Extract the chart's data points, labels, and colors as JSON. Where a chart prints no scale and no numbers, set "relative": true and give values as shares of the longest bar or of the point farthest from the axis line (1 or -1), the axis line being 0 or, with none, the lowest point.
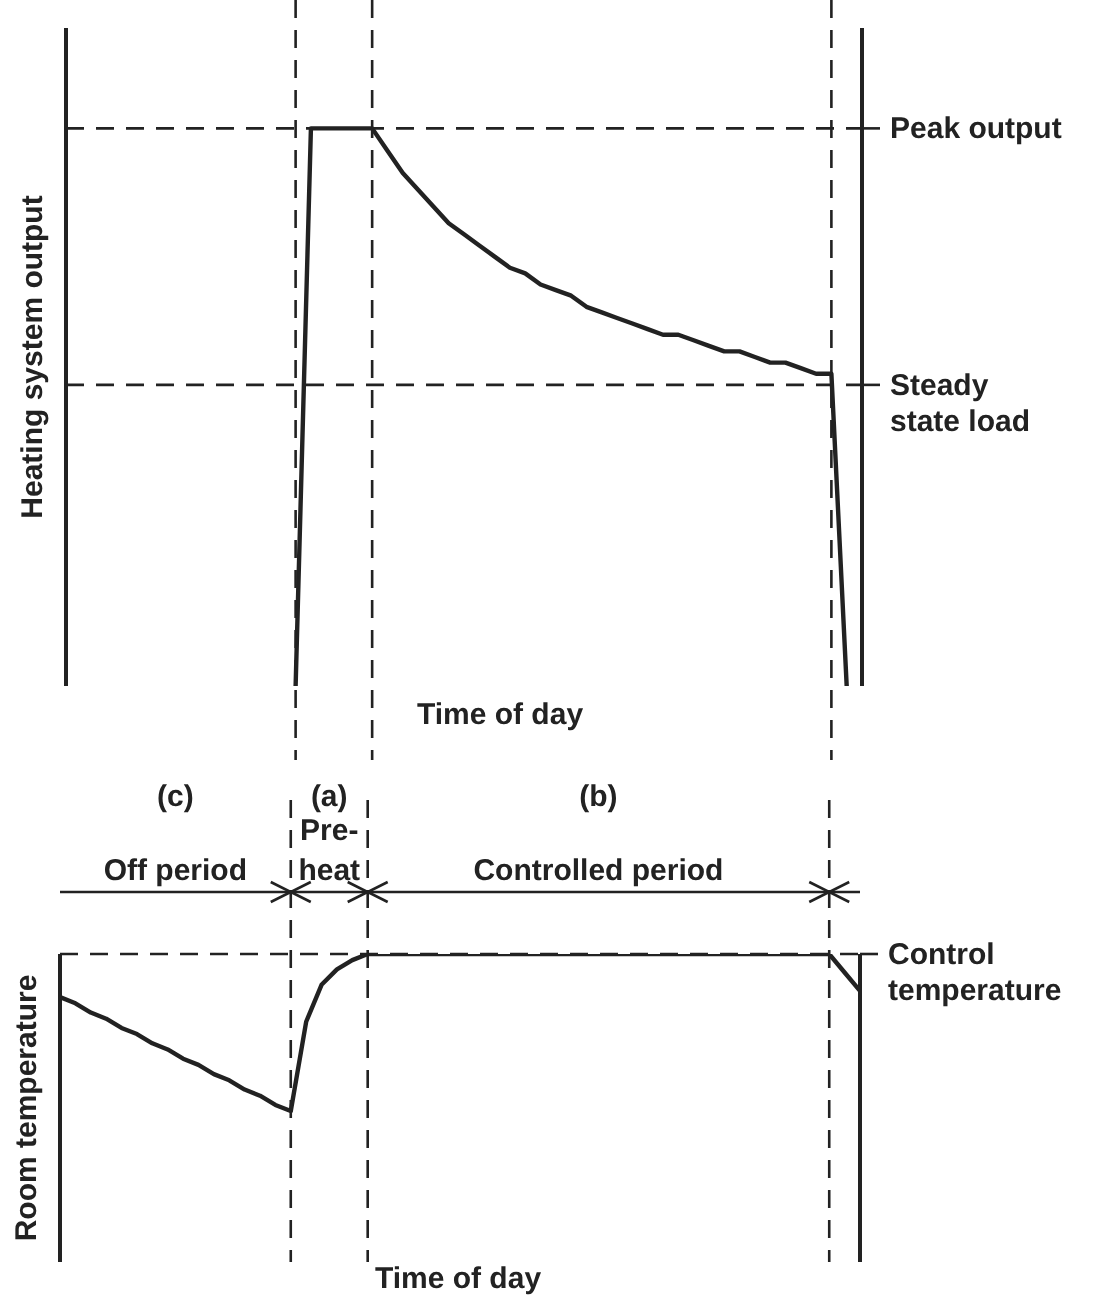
{
  "chart_data": [
    {
      "type": "line",
      "relative": true,
      "grid": "x",
      "ylabel": "Heating system output",
      "xlabel": "Time of day",
      "categories": [
        null,
        null,
        null,
        null,
        null,
        null,
        null,
        null,
        null,
        null,
        null,
        null,
        null,
        null,
        null,
        null,
        null,
        null,
        null,
        null,
        null,
        null,
        null,
        null,
        null,
        null,
        null,
        null,
        null,
        null,
        null,
        null,
        null,
        null,
        null,
        null,
        null,
        null,
        null,
        null,
        null,
        null,
        null,
        null,
        null,
        null,
        null,
        null,
        null,
        null,
        null,
        null,
        null
      ],
      "series": [
        {
          "color": "#222222",
          "values": [
            null,
            null,
            null,
            null,
            null,
            null,
            null,
            null,
            null,
            null,
            null,
            null,
            null,
            null,
            null,
            0,
            1,
            1,
            1,
            1,
            1,
            0.96,
            0.92,
            0.89,
            0.86,
            0.83,
            0.81,
            0.79,
            0.77,
            0.75,
            0.74,
            0.72,
            0.71,
            0.7,
            0.68,
            0.67,
            0.66,
            0.65,
            0.64,
            0.63,
            0.63,
            0.62,
            0.61,
            0.6,
            0.6,
            0.59,
            0.58,
            0.58,
            0.57,
            0.56,
            0.56,
            0,
            null
          ]
        }
      ],
      "ref_lines": [
        {
          "axis": "y",
          "value": 1,
          "label": "Peak output",
          "line_style": "dashed"
        },
        {
          "axis": "y",
          "value": 0.54,
          "label": "Steady state load",
          "line_style": "dashed"
        }
      ]
    },
    {
      "type": "line",
      "relative": true,
      "grid": "x",
      "ylabel": "Room temperature",
      "xlabel": "Time of day",
      "categories": [
        null,
        null,
        null,
        null,
        null,
        null,
        null,
        null,
        null,
        null,
        null,
        null,
        null,
        null,
        null,
        null,
        null,
        null,
        null,
        null,
        null,
        null,
        null,
        null,
        null,
        null,
        null,
        null,
        null,
        null,
        null,
        null,
        null,
        null,
        null,
        null,
        null,
        null,
        null,
        null,
        null,
        null,
        null,
        null,
        null,
        null,
        null,
        null,
        null,
        null,
        null,
        null,
        null
      ],
      "series": [
        {
          "color": "#222222",
          "values": [
            0.86,
            0.84,
            0.81,
            0.79,
            0.76,
            0.74,
            0.71,
            0.69,
            0.66,
            0.64,
            0.61,
            0.59,
            0.56,
            0.54,
            0.51,
            0.49,
            0.78,
            0.9,
            0.95,
            0.98,
            1,
            1,
            1,
            1,
            1,
            1,
            1,
            1,
            1,
            1,
            1,
            1,
            1,
            1,
            1,
            1,
            1,
            1,
            1,
            1,
            1,
            1,
            1,
            1,
            1,
            1,
            1,
            1,
            1,
            1,
            1,
            0.94,
            0.88
          ]
        }
      ],
      "ref_lines": [
        {
          "axis": "y",
          "value": 1,
          "label": "Control temperature",
          "line_style": "dashed"
        }
      ],
      "annotations": [
        "(c)",
        "(a)",
        "(b)",
        "Off period",
        "Pre-heat",
        "Controlled period"
      ]
    }
  ]
}
